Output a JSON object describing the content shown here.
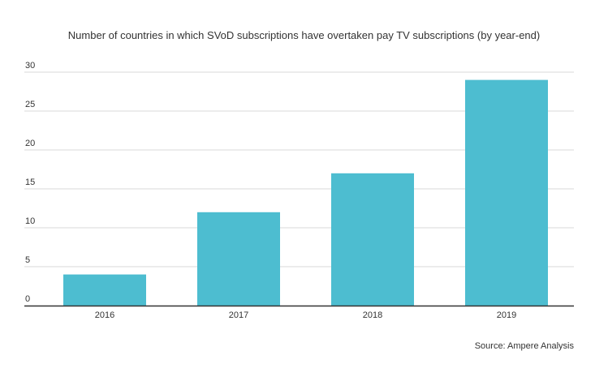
{
  "chart_data": {
    "type": "bar",
    "title": "Number of countries in which SVoD subscriptions have overtaken pay TV subscriptions (by year-end)",
    "categories": [
      "2016",
      "2017",
      "2018",
      "2019"
    ],
    "values": [
      4,
      12,
      17,
      29
    ],
    "xlabel": "",
    "ylabel": "",
    "ylim": [
      0,
      30
    ],
    "yticks": [
      0,
      5,
      10,
      15,
      20,
      25,
      30
    ],
    "grid": true,
    "bar_color": "#4dbdd0",
    "source": "Source: Ampere Analysis"
  }
}
